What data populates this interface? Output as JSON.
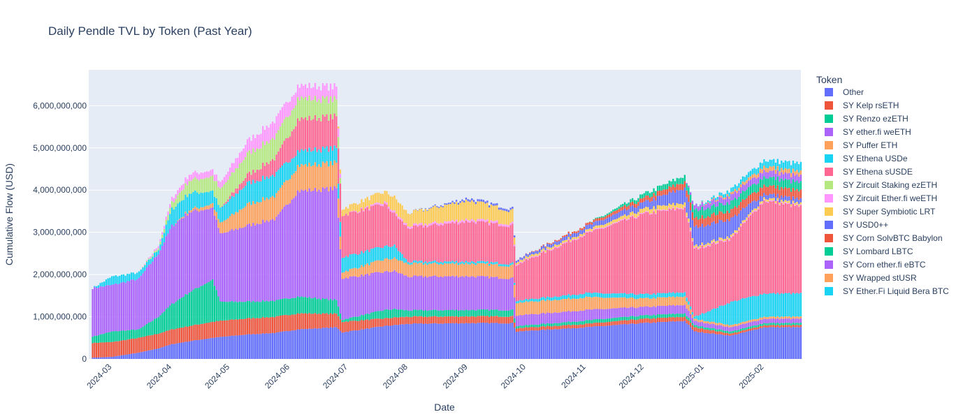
{
  "chart_data": {
    "type": "bar",
    "stacked": true,
    "title": "Daily Pendle TVL by Token (Past Year)",
    "xlabel": "Date",
    "ylabel": "Cumulative Flow (USD)",
    "ylim": [
      0,
      6850000000
    ],
    "yticks": [
      0,
      1000000000,
      2000000000,
      3000000000,
      4000000000,
      5000000000,
      6000000000
    ],
    "ytick_labels": [
      "0",
      "1,000,000,000",
      "2,000,000,000",
      "3,000,000,000",
      "4,000,000,000",
      "5,000,000,000",
      "6,000,000,000"
    ],
    "xlim": [
      "2024-02-18",
      "2025-02-20"
    ],
    "xticks": [
      "2024-03-01",
      "2024-04-01",
      "2024-05-01",
      "2024-06-01",
      "2024-07-01",
      "2024-08-01",
      "2024-09-01",
      "2024-10-01",
      "2024-11-01",
      "2024-12-01",
      "2025-01-01",
      "2025-02-01"
    ],
    "xtick_labels": [
      "2024-03",
      "2024-04",
      "2024-05",
      "2024-06",
      "2024-07",
      "2024-08",
      "2024-09",
      "2024-10",
      "2024-11",
      "2024-12",
      "2025-01",
      "2025-02"
    ],
    "grid": true,
    "legend_title": "Token",
    "legend_position": "right",
    "series": [
      {
        "name": "Other",
        "color": "#636efa"
      },
      {
        "name": "SY Kelp rsETH",
        "color": "#EF553B"
      },
      {
        "name": "SY Renzo ezETH",
        "color": "#00cc96"
      },
      {
        "name": "SY ether.fi weETH",
        "color": "#ab63fa"
      },
      {
        "name": "SY Puffer ETH",
        "color": "#FFA15A"
      },
      {
        "name": "SY Ethena USDe",
        "color": "#19d3f3"
      },
      {
        "name": "SY Ethena sUSDE",
        "color": "#FF6692"
      },
      {
        "name": "SY Zircuit Staking ezETH",
        "color": "#B6E880"
      },
      {
        "name": "SY Zircuit Ether.fi weETH",
        "color": "#FF97FF"
      },
      {
        "name": "SY Super Symbiotic LRT",
        "color": "#FECB52"
      },
      {
        "name": "SY USD0++",
        "color": "#636efa"
      },
      {
        "name": "SY Corn SolvBTC Babylon",
        "color": "#EF553B"
      },
      {
        "name": "SY Lombard LBTC",
        "color": "#00cc96"
      },
      {
        "name": "SY Corn ether.fi eBTC",
        "color": "#ab63fa"
      },
      {
        "name": "SY Wrapped stUSR",
        "color": "#FFA15A"
      },
      {
        "name": "SY Ether.Fi Liquid Bera BTC",
        "color": "#19d3f3"
      }
    ],
    "keyframes": [
      {
        "date": "2024-02-20",
        "v": [
          0.03,
          0.35,
          0.15,
          1.15,
          0,
          0,
          0,
          0,
          0,
          0,
          0,
          0,
          0,
          0,
          0,
          0
        ]
      },
      {
        "date": "2024-03-01",
        "v": [
          0.05,
          0.35,
          0.25,
          1.1,
          0,
          0.2,
          0,
          0,
          0,
          0,
          0,
          0,
          0,
          0,
          0,
          0
        ]
      },
      {
        "date": "2024-03-15",
        "v": [
          0.15,
          0.35,
          0.2,
          1.2,
          0,
          0.15,
          0,
          0,
          0,
          0,
          0,
          0,
          0,
          0,
          0,
          0
        ]
      },
      {
        "date": "2024-03-25",
        "v": [
          0.25,
          0.35,
          0.4,
          1.5,
          0,
          0.1,
          0,
          0.05,
          0.05,
          0,
          0,
          0,
          0,
          0,
          0,
          0
        ]
      },
      {
        "date": "2024-04-01",
        "v": [
          0.35,
          0.35,
          0.6,
          1.85,
          0,
          0.4,
          0,
          0.15,
          0.1,
          0,
          0,
          0,
          0,
          0,
          0,
          0
        ]
      },
      {
        "date": "2024-04-10",
        "v": [
          0.42,
          0.36,
          0.8,
          1.9,
          0.05,
          0.4,
          0,
          0.3,
          0.15,
          0,
          0,
          0,
          0,
          0,
          0,
          0
        ]
      },
      {
        "date": "2024-04-22",
        "v": [
          0.5,
          0.38,
          1.0,
          1.7,
          0.1,
          0.3,
          0,
          0.35,
          0.15,
          0,
          0,
          0,
          0,
          0,
          0,
          0
        ]
      },
      {
        "date": "2024-04-26",
        "v": [
          0.52,
          0.38,
          0.45,
          1.6,
          0.25,
          0.35,
          0,
          0.45,
          0.15,
          0,
          0,
          0,
          0,
          0,
          0,
          0
        ]
      },
      {
        "date": "2024-05-10",
        "v": [
          0.58,
          0.38,
          0.4,
          1.8,
          0.5,
          0.5,
          0.2,
          0.5,
          0.3,
          0,
          0,
          0,
          0,
          0,
          0,
          0
        ]
      },
      {
        "date": "2024-05-25",
        "v": [
          0.62,
          0.38,
          0.38,
          1.95,
          0.55,
          0.5,
          0.4,
          0.5,
          0.4,
          0,
          0,
          0,
          0,
          0,
          0,
          0
        ]
      },
      {
        "date": "2024-06-05",
        "v": [
          0.7,
          0.38,
          0.4,
          2.5,
          0.6,
          0.35,
          0.75,
          0.5,
          0.3,
          0,
          0,
          0,
          0,
          0,
          0,
          0
        ]
      },
      {
        "date": "2024-06-25",
        "v": [
          0.75,
          0.32,
          0.32,
          2.65,
          0.6,
          0.35,
          0.75,
          0.4,
          0.3,
          0,
          0,
          0,
          0,
          0,
          0,
          0
        ]
      },
      {
        "date": "2024-06-28",
        "v": [
          0.63,
          0.25,
          0.05,
          0.98,
          0.15,
          0.35,
          1.0,
          0,
          0,
          0.15,
          0,
          0,
          0,
          0,
          0,
          0
        ]
      },
      {
        "date": "2024-07-20",
        "v": [
          0.78,
          0.18,
          0.2,
          0.9,
          0.3,
          0.3,
          1.0,
          0,
          0.05,
          0.25,
          0,
          0,
          0,
          0,
          0,
          0
        ]
      },
      {
        "date": "2024-07-25",
        "v": [
          0.8,
          0.18,
          0.2,
          0.9,
          0.3,
          0.3,
          0.75,
          0,
          0.05,
          0.35,
          0,
          0,
          0,
          0,
          0,
          0
        ]
      },
      {
        "date": "2024-08-01",
        "v": [
          0.83,
          0.17,
          0.15,
          0.8,
          0.3,
          0.05,
          0.8,
          0,
          0.05,
          0.3,
          0,
          0,
          0,
          0,
          0,
          0
        ]
      },
      {
        "date": "2024-09-01",
        "v": [
          0.85,
          0.16,
          0.15,
          0.8,
          0.3,
          0.05,
          0.95,
          0,
          0.05,
          0.45,
          0.05,
          0,
          0,
          0,
          0,
          0
        ]
      },
      {
        "date": "2024-09-24",
        "v": [
          0.85,
          0.16,
          0.15,
          0.75,
          0.3,
          0.05,
          0.9,
          0,
          0.05,
          0.3,
          0.05,
          0,
          0,
          0,
          0,
          0
        ]
      },
      {
        "date": "2024-09-26",
        "v": [
          0.65,
          0.08,
          0.05,
          0.25,
          0.3,
          0.05,
          0.85,
          0,
          0.02,
          0.05,
          0.05,
          0,
          0,
          0,
          0,
          0
        ]
      },
      {
        "date": "2024-11-01",
        "v": [
          0.75,
          0.08,
          0.08,
          0.25,
          0.3,
          0.1,
          1.4,
          0,
          0.02,
          0.05,
          0.1,
          0.05,
          0,
          0,
          0,
          0
        ]
      },
      {
        "date": "2024-12-01",
        "v": [
          0.85,
          0.1,
          0.08,
          0.2,
          0.2,
          0.1,
          1.9,
          0,
          0.02,
          0.1,
          0.15,
          0.1,
          0.1,
          0,
          0,
          0
        ]
      },
      {
        "date": "2024-12-22",
        "v": [
          0.9,
          0.1,
          0.08,
          0.2,
          0.2,
          0.1,
          2.0,
          0,
          0.02,
          0.1,
          0.35,
          0.15,
          0.15,
          0,
          0,
          0
        ]
      },
      {
        "date": "2024-12-27",
        "v": [
          0.65,
          0.1,
          0.05,
          0.1,
          0.05,
          0.05,
          1.6,
          0,
          0.02,
          0.05,
          0.45,
          0.2,
          0.2,
          0.1,
          0,
          0
        ]
      },
      {
        "date": "2025-01-15",
        "v": [
          0.55,
          0.05,
          0.05,
          0.1,
          0.05,
          0.55,
          1.5,
          0,
          0.02,
          0.05,
          0.4,
          0.2,
          0.2,
          0.15,
          0.05,
          0.1
        ]
      },
      {
        "date": "2025-02-01",
        "v": [
          0.75,
          0.05,
          0.05,
          0.1,
          0.05,
          0.55,
          2.2,
          0,
          0.02,
          0.05,
          0.1,
          0.2,
          0.2,
          0.15,
          0.1,
          0.15
        ]
      },
      {
        "date": "2025-02-20",
        "v": [
          0.75,
          0.05,
          0.05,
          0.1,
          0.05,
          0.55,
          2.05,
          0,
          0.02,
          0.05,
          0.1,
          0.2,
          0.2,
          0.15,
          0.1,
          0.2
        ]
      }
    ],
    "keyframe_units": "billions USD"
  }
}
